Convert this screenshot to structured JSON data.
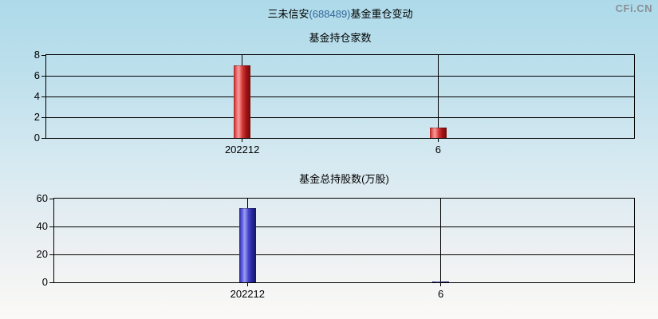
{
  "logo": "CFi.CN",
  "title": {
    "stock_name": "三未信安",
    "stock_code": "(688489)",
    "suffix": "基金重仓变动"
  },
  "colors": {
    "background_top": "#addae9",
    "background_bottom": "#fbf9f7",
    "red_bar": "#cc2222",
    "blue_bar": "#2b2bb4",
    "stock_code_text": "#336699",
    "logo_text": "#8a9096",
    "axis": "#000000"
  },
  "chart_data": [
    {
      "type": "bar",
      "title": "基金持仓家数",
      "categories": [
        "202212",
        "6"
      ],
      "values": [
        7,
        1
      ],
      "ylim": [
        0,
        8
      ],
      "yticks": [
        0,
        2,
        4,
        6,
        8
      ],
      "bar_color": "red",
      "grid": true,
      "legend": false
    },
    {
      "type": "bar",
      "title": "基金总持股数(万股)",
      "categories": [
        "202212",
        "6"
      ],
      "values": [
        53.4,
        0.6
      ],
      "ylim": [
        0,
        60
      ],
      "yticks": [
        0,
        20,
        40,
        60
      ],
      "bar_color": "blue",
      "grid": true,
      "legend": false
    }
  ]
}
